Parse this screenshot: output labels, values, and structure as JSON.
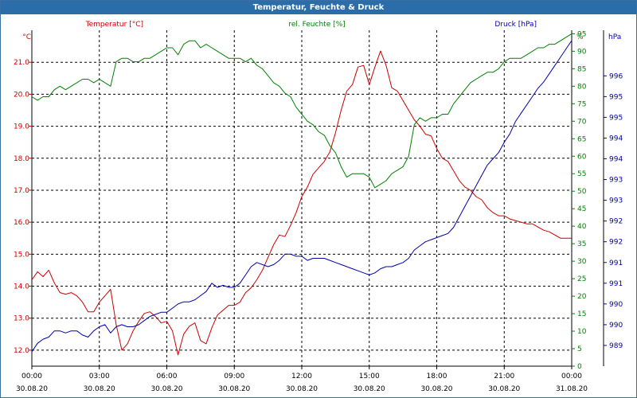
{
  "window": {
    "title": "Temperatur, Feuchte & Druck"
  },
  "colors": {
    "temperature": "#cc0000",
    "humidity": "#008000",
    "pressure": "#0000aa",
    "axis": "#000000",
    "grid": "#000000",
    "titlebar": "#2a6da8"
  },
  "chart_data": {
    "type": "line",
    "title": "Temperatur, Feuchte & Druck",
    "grid": true,
    "legend": "top",
    "x": {
      "range": [
        "30.08.20 00:00",
        "31.08.20 00:00"
      ],
      "ticks": [
        {
          "time": "00:00",
          "date": "30.08.20"
        },
        {
          "time": "03:00",
          "date": "30.08.20"
        },
        {
          "time": "06:00",
          "date": "30.08.20"
        },
        {
          "time": "09:00",
          "date": "30.08.20"
        },
        {
          "time": "12:00",
          "date": "30.08.20"
        },
        {
          "time": "15:00",
          "date": "30.08.20"
        },
        {
          "time": "18:00",
          "date": "30.08.20"
        },
        {
          "time": "21:00",
          "date": "30.08.20"
        },
        {
          "time": "00:00",
          "date": "31.08.20"
        }
      ]
    },
    "axes": {
      "temperature": {
        "label": "Temperatur [°C]",
        "unit": "°C",
        "range": [
          11.5,
          22.0
        ],
        "ticks": [
          "12.0",
          "13.0",
          "14.0",
          "15.0",
          "16.0",
          "17.0",
          "18.0",
          "19.0",
          "20.0",
          "21.0"
        ]
      },
      "humidity": {
        "label": "rel. Feuchte [%]",
        "unit": "%",
        "range": [
          0,
          96
        ],
        "ticks": [
          "0",
          "5",
          "10",
          "15",
          "20",
          "25",
          "30",
          "35",
          "40",
          "45",
          "50",
          "55",
          "60",
          "65",
          "70",
          "75",
          "80",
          "85",
          "90",
          "95"
        ]
      },
      "pressure": {
        "label": "Druck [hPa]",
        "unit": "hPa",
        "range": [
          988.5,
          996.6
        ],
        "ticks": [
          "989",
          "990",
          "990",
          "991",
          "991",
          "992",
          "992",
          "993",
          "993",
          "994",
          "994",
          "995",
          "995",
          "996"
        ]
      }
    },
    "series": [
      {
        "name": "Temperatur [°C]",
        "axis": "temperature",
        "color": "#cc0000",
        "x": [
          0,
          0.25,
          0.5,
          0.75,
          1,
          1.25,
          1.5,
          1.75,
          2,
          2.25,
          2.5,
          2.75,
          3,
          3.25,
          3.5,
          3.75,
          4,
          4.25,
          4.5,
          4.75,
          5,
          5.25,
          5.5,
          5.75,
          6,
          6.25,
          6.5,
          6.75,
          7,
          7.25,
          7.5,
          7.75,
          8,
          8.25,
          8.5,
          8.75,
          9,
          9.25,
          9.5,
          9.75,
          10,
          10.25,
          10.5,
          10.75,
          11,
          11.25,
          11.5,
          11.75,
          12,
          12.25,
          12.5,
          12.75,
          13,
          13.25,
          13.5,
          13.75,
          14,
          14.25,
          14.5,
          14.75,
          15,
          15.25,
          15.5,
          15.75,
          16,
          16.25,
          16.5,
          16.75,
          17,
          17.25,
          17.5,
          17.75,
          18,
          18.25,
          18.5,
          18.75,
          19,
          19.25,
          19.5,
          19.75,
          20,
          20.25,
          20.5,
          20.75,
          21,
          21.25,
          21.5,
          21.75,
          22,
          22.25,
          22.5,
          22.75,
          23,
          23.25,
          23.5,
          23.75,
          24
        ],
        "values": [
          14.2,
          14.45,
          14.3,
          14.5,
          14.1,
          13.8,
          13.75,
          13.8,
          13.7,
          13.5,
          13.2,
          13.2,
          13.5,
          13.7,
          13.9,
          12.8,
          12.0,
          12.2,
          12.6,
          12.9,
          13.15,
          13.2,
          13.05,
          12.85,
          12.9,
          12.6,
          11.85,
          12.5,
          12.75,
          12.85,
          12.3,
          12.2,
          12.7,
          13.1,
          13.25,
          13.4,
          13.4,
          13.5,
          13.8,
          13.95,
          14.2,
          14.5,
          14.9,
          15.3,
          15.6,
          15.55,
          15.9,
          16.3,
          16.8,
          17.1,
          17.5,
          17.7,
          17.9,
          18.2,
          18.8,
          19.5,
          20.1,
          20.3,
          20.85,
          20.9,
          20.3,
          20.85,
          21.35,
          20.9,
          20.2,
          20.1,
          19.8,
          19.5,
          19.2,
          19.0,
          18.75,
          18.7,
          18.3,
          18.0,
          17.9,
          17.6,
          17.3,
          17.1,
          17.0,
          16.8,
          16.7,
          16.45,
          16.3,
          16.2,
          16.2,
          16.1,
          16.05,
          16.0,
          15.95,
          15.95,
          15.85,
          15.75,
          15.7,
          15.6,
          15.5,
          15.5,
          15.5
        ]
      },
      {
        "name": "rel. Feuchte [%]",
        "axis": "humidity",
        "color": "#008000",
        "x": [
          0,
          0.25,
          0.5,
          0.75,
          1,
          1.25,
          1.5,
          1.75,
          2,
          2.25,
          2.5,
          2.75,
          3,
          3.25,
          3.5,
          3.75,
          4,
          4.25,
          4.5,
          4.75,
          5,
          5.25,
          5.5,
          5.75,
          6,
          6.25,
          6.5,
          6.75,
          7,
          7.25,
          7.5,
          7.75,
          8,
          8.25,
          8.5,
          8.75,
          9,
          9.25,
          9.5,
          9.75,
          10,
          10.25,
          10.5,
          10.75,
          11,
          11.25,
          11.5,
          11.75,
          12,
          12.25,
          12.5,
          12.75,
          13,
          13.25,
          13.5,
          13.75,
          14,
          14.25,
          14.5,
          14.75,
          15,
          15.25,
          15.5,
          15.75,
          16,
          16.25,
          16.5,
          16.75,
          17,
          17.25,
          17.5,
          17.75,
          18,
          18.25,
          18.5,
          18.75,
          19,
          19.25,
          19.5,
          19.75,
          20,
          20.25,
          20.5,
          20.75,
          21,
          21.25,
          21.5,
          21.75,
          22,
          22.25,
          22.5,
          22.75,
          23,
          23.25,
          23.5,
          23.75,
          24
        ],
        "values": [
          77,
          76,
          77,
          77,
          79,
          80,
          79,
          80,
          81,
          82,
          82,
          81,
          82,
          81,
          80,
          87,
          88,
          88,
          87,
          87,
          88,
          88,
          89,
          90,
          91,
          91,
          89,
          92,
          93,
          93,
          91,
          92,
          91,
          90,
          89,
          88,
          88,
          88,
          87,
          88,
          86,
          85,
          83,
          81,
          80,
          78,
          77,
          74,
          72,
          70,
          69,
          67,
          66,
          63,
          61,
          57,
          54,
          55,
          55,
          55,
          54,
          51,
          52,
          53,
          55,
          56,
          57,
          60,
          69,
          71,
          70,
          71,
          71,
          72,
          72,
          75,
          77,
          79,
          81,
          82,
          83,
          84,
          84,
          85,
          87,
          88,
          88,
          88,
          89,
          90,
          91,
          91,
          92,
          92,
          93,
          94,
          95
        ]
      },
      {
        "name": "Druck [hPa]",
        "axis": "pressure",
        "color": "#0000aa",
        "x": [
          0,
          0.25,
          0.5,
          0.75,
          1,
          1.25,
          1.5,
          1.75,
          2,
          2.25,
          2.5,
          2.75,
          3,
          3.25,
          3.5,
          3.75,
          4,
          4.25,
          4.5,
          4.75,
          5,
          5.25,
          5.5,
          5.75,
          6,
          6.25,
          6.5,
          6.75,
          7,
          7.25,
          7.5,
          7.75,
          8,
          8.25,
          8.5,
          8.75,
          9,
          9.25,
          9.5,
          9.75,
          10,
          10.25,
          10.5,
          10.75,
          11,
          11.25,
          11.5,
          11.75,
          12,
          12.25,
          12.5,
          12.75,
          13,
          13.25,
          13.5,
          13.75,
          14,
          14.25,
          14.5,
          14.75,
          15,
          15.25,
          15.5,
          15.75,
          16,
          16.25,
          16.5,
          16.75,
          17,
          17.25,
          17.5,
          17.75,
          18,
          18.25,
          18.5,
          18.75,
          19,
          19.25,
          19.5,
          19.75,
          20,
          20.25,
          20.5,
          20.75,
          21,
          21.25,
          21.5,
          21.75,
          22,
          22.25,
          22.5,
          22.75,
          23,
          23.25,
          23.5,
          23.75,
          24
        ],
        "values": [
          988.85,
          989.05,
          989.15,
          989.2,
          989.35,
          989.35,
          989.3,
          989.35,
          989.35,
          989.25,
          989.2,
          989.35,
          989.45,
          989.5,
          989.3,
          989.45,
          989.5,
          989.45,
          989.45,
          989.5,
          989.6,
          989.7,
          989.75,
          989.8,
          989.8,
          989.9,
          990.0,
          990.05,
          990.05,
          990.1,
          990.2,
          990.3,
          990.5,
          990.4,
          990.45,
          990.4,
          990.4,
          990.5,
          990.7,
          990.9,
          991.0,
          990.95,
          990.9,
          990.95,
          991.05,
          991.2,
          991.2,
          991.15,
          991.15,
          991.05,
          991.1,
          991.1,
          991.1,
          991.05,
          991.0,
          990.95,
          990.9,
          990.85,
          990.8,
          990.75,
          990.7,
          990.75,
          990.85,
          990.9,
          990.9,
          990.95,
          991.0,
          991.1,
          991.3,
          991.4,
          991.5,
          991.55,
          991.6,
          991.65,
          991.7,
          991.85,
          992.1,
          992.35,
          992.6,
          992.85,
          993.1,
          993.35,
          993.5,
          993.65,
          993.9,
          994.1,
          994.4,
          994.6,
          994.8,
          995.0,
          995.2,
          995.35,
          995.55,
          995.75,
          995.95,
          996.15,
          996.35
        ]
      }
    ]
  }
}
